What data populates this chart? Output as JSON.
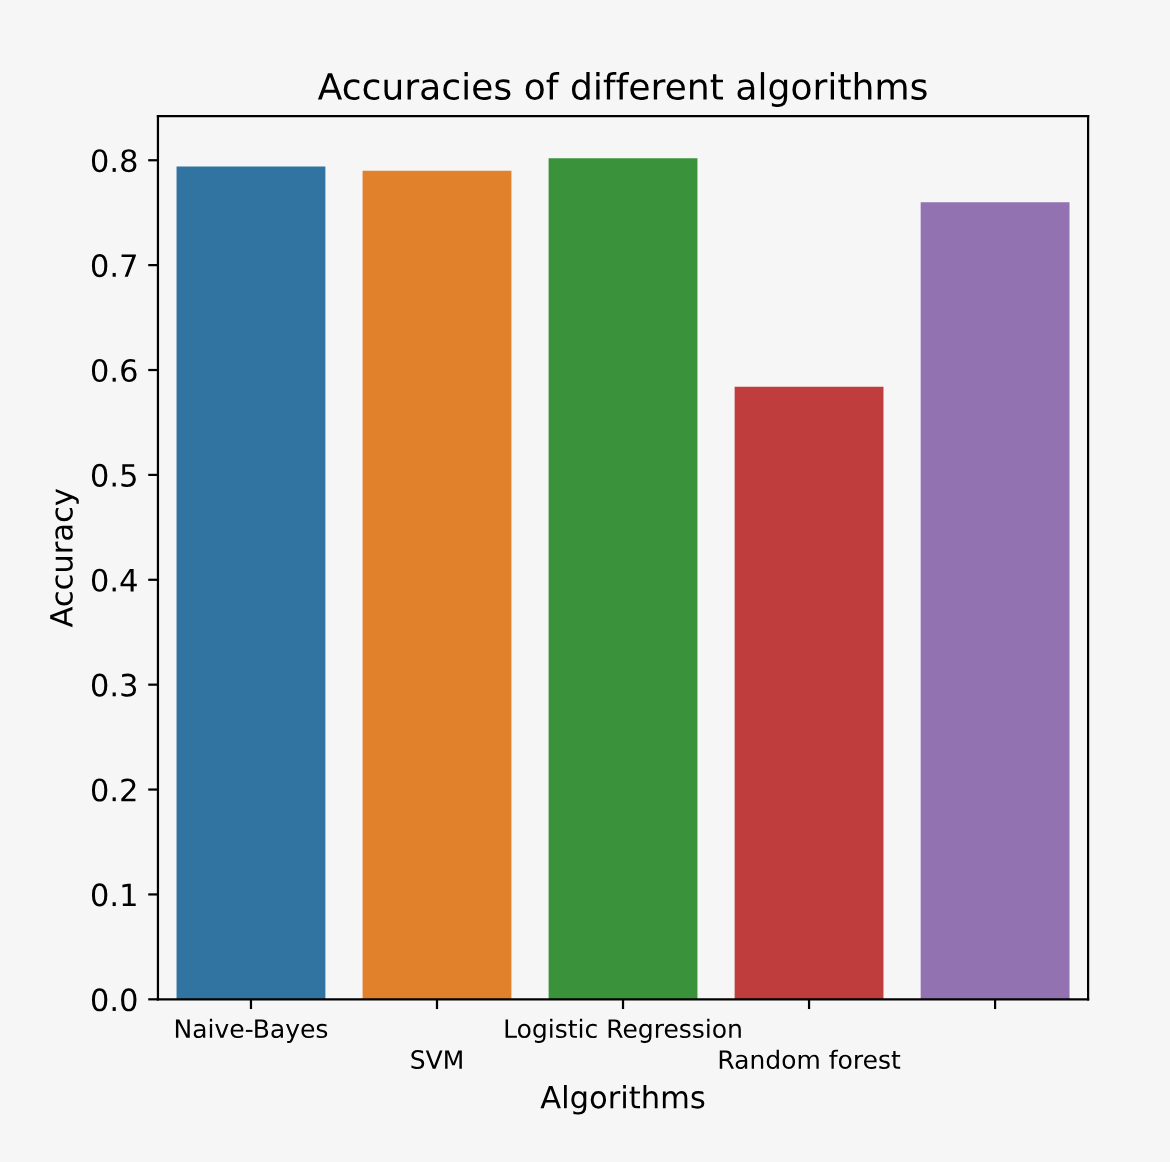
{
  "chart_data": {
    "type": "bar",
    "title": "Accuracies of different algorithms",
    "xlabel": "Algorithms",
    "ylabel": "Accuracy",
    "categories": [
      "Naive-Bayes",
      "SVM",
      "Logistic Regression",
      "Random forest",
      null
    ],
    "values": [
      0.794,
      0.79,
      0.802,
      0.584,
      0.76
    ],
    "colors": [
      "#3274a1",
      "#e1812c",
      "#3a923a",
      "#c03d3e",
      "#9372b2"
    ],
    "ylim": [
      0,
      0.842
    ],
    "yticks": [
      {
        "value": 0,
        "label": "0.0"
      },
      0.1,
      0.2,
      0.3,
      0.4,
      0.5,
      0.6,
      0.7,
      0.8
    ],
    "grid": false
  }
}
